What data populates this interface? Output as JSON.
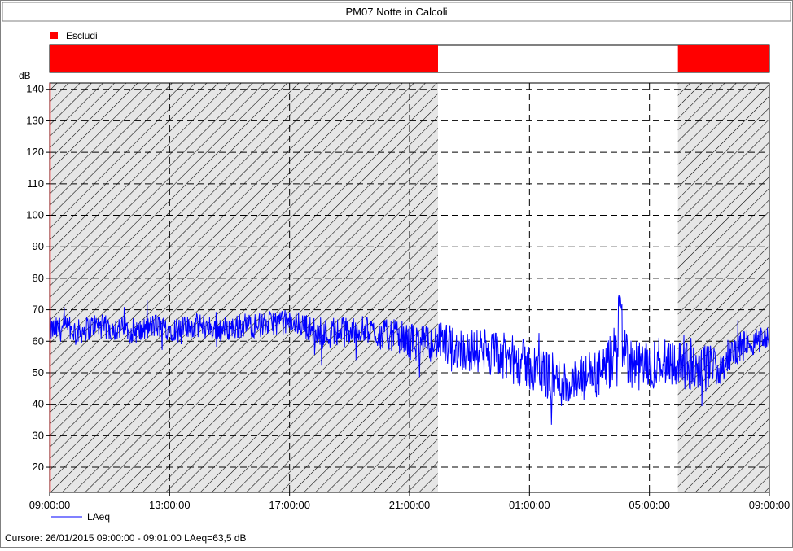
{
  "chart_data": {
    "type": "line",
    "title": "PM07 Notte in Calcoli",
    "ylabel": "dB",
    "ylim": [
      12,
      142
    ],
    "yticks": [
      20,
      30,
      40,
      50,
      60,
      70,
      80,
      90,
      100,
      110,
      120,
      130,
      140
    ],
    "x_range_hours": [
      9,
      33
    ],
    "x_ticks": [
      {
        "label": "09:00:00",
        "hour": 9
      },
      {
        "label": "13:00:00",
        "hour": 13
      },
      {
        "label": "17:00:00",
        "hour": 17
      },
      {
        "label": "21:00:00",
        "hour": 21
      },
      {
        "label": "01:00:00",
        "hour": 25
      },
      {
        "label": "05:00:00",
        "hour": 29
      },
      {
        "label": "09:00:00",
        "hour": 33
      }
    ],
    "grid": true,
    "exclusion_legend": {
      "label": "Escludi",
      "color": "#ff0000"
    },
    "excluded_periods_hours": [
      [
        9,
        21.95
      ],
      [
        29.95,
        33
      ]
    ],
    "series": [
      {
        "name": "LAeq",
        "color": "#0000ff",
        "x_hours": [
          9.0,
          9.5,
          10.0,
          10.5,
          11.0,
          11.5,
          12.0,
          12.5,
          13.0,
          13.5,
          14.0,
          14.5,
          15.0,
          15.5,
          16.0,
          16.5,
          17.0,
          17.5,
          18.0,
          18.5,
          19.0,
          19.5,
          20.0,
          20.5,
          21.0,
          21.5,
          22.0,
          22.5,
          23.0,
          23.5,
          24.0,
          24.5,
          25.0,
          25.5,
          26.0,
          26.5,
          27.0,
          27.5,
          28.0,
          28.5,
          29.0,
          29.5,
          30.0,
          30.5,
          31.0,
          31.5,
          32.0,
          32.5,
          33.0
        ],
        "values_db": [
          63.5,
          64,
          63,
          65,
          64,
          64,
          63,
          65,
          64,
          64,
          65,
          64,
          64,
          65,
          65,
          66,
          66,
          65,
          62,
          63,
          63,
          64,
          62,
          62,
          60,
          59,
          60,
          58,
          57,
          57,
          55,
          54,
          52,
          50,
          47,
          46,
          49,
          50,
          58,
          52,
          52,
          55,
          53,
          51,
          52,
          53,
          58,
          60,
          62
        ],
        "noise_amplitude_db": [
          4,
          4,
          4,
          4,
          4,
          4,
          4,
          4,
          4,
          4,
          4,
          4,
          4,
          4,
          4,
          4,
          4,
          4,
          5,
          5,
          5,
          4,
          5,
          5,
          6,
          6,
          6,
          7,
          7,
          7,
          8,
          8,
          8,
          8,
          8,
          8,
          8,
          8,
          10,
          8,
          8,
          8,
          8,
          7,
          7,
          6,
          5,
          4,
          4
        ]
      }
    ],
    "cursor_text": "Cursore: 26/01/2015 09:00:00 - 09:01:00  LAeq=63,5 dB"
  }
}
